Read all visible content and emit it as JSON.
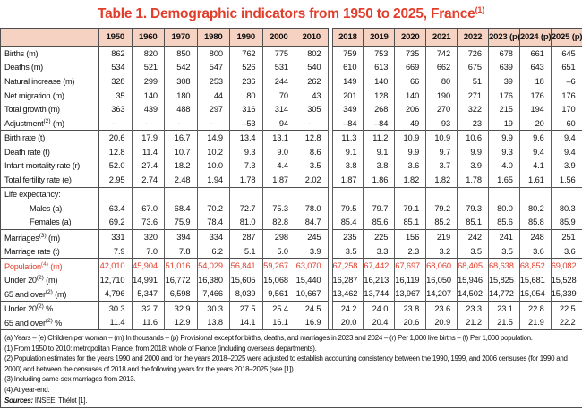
{
  "title": {
    "text": "Table 1. Demographic indicators from 1950 to 2025, France",
    "sup": "(1)"
  },
  "colors": {
    "accent_red": "#e23d2b",
    "header_pink": "#f6d2c3",
    "border_gray": "#4f4f4f"
  },
  "table": {
    "left_years": [
      "1950",
      "1960",
      "1970",
      "1980",
      "1990",
      "2000",
      "2010"
    ],
    "right_years": [
      "2018",
      "2019",
      "2020",
      "2021",
      "2022",
      "2023 (p)",
      "2024 (p)",
      "2025 (p)"
    ],
    "rows": [
      {
        "pre": "Births",
        "sup": "",
        "post": " (m)",
        "left": [
          "862",
          "820",
          "850",
          "800",
          "762",
          "775",
          "802"
        ],
        "right": [
          "759",
          "753",
          "735",
          "742",
          "726",
          "678",
          "661",
          "645"
        ]
      },
      {
        "pre": "Deaths",
        "sup": "",
        "post": " (m)",
        "left": [
          "534",
          "521",
          "542",
          "547",
          "526",
          "531",
          "540"
        ],
        "right": [
          "610",
          "613",
          "669",
          "662",
          "675",
          "639",
          "643",
          "651"
        ]
      },
      {
        "pre": "Natural increase",
        "sup": "",
        "post": " (m)",
        "left": [
          "328",
          "299",
          "308",
          "253",
          "236",
          "244",
          "262"
        ],
        "right": [
          "149",
          "140",
          "66",
          "80",
          "51",
          "39",
          "18",
          "–6"
        ]
      },
      {
        "pre": "Net migration",
        "sup": "",
        "post": " (m)",
        "left": [
          "35",
          "140",
          "180",
          "44",
          "80",
          "70",
          "43"
        ],
        "right": [
          "201",
          "128",
          "140",
          "190",
          "271",
          "176",
          "176",
          "176"
        ]
      },
      {
        "pre": "Total growth",
        "sup": "",
        "post": " (m)",
        "left": [
          "363",
          "439",
          "488",
          "297",
          "316",
          "314",
          "305"
        ],
        "right": [
          "349",
          "268",
          "206",
          "270",
          "322",
          "215",
          "194",
          "170"
        ]
      },
      {
        "pre": "Adjustment",
        "sup": "(2)",
        "post": " (m)",
        "left": [
          "-",
          "-",
          "-",
          "-",
          "–53",
          "94",
          "-"
        ],
        "right": [
          "–84",
          "–84",
          "49",
          "93",
          "23",
          "19",
          "20",
          "60"
        ]
      },
      {
        "pre": "Birth rate",
        "sup": "",
        "post": " (t)",
        "group_start": true,
        "left": [
          "20.6",
          "17.9",
          "16.7",
          "14.9",
          "13.4",
          "13.1",
          "12.8"
        ],
        "right": [
          "11.3",
          "11.2",
          "10.9",
          "10.9",
          "10.6",
          "9.9",
          "9.6",
          "9.4"
        ]
      },
      {
        "pre": "Death rate",
        "sup": "",
        "post": " (t)",
        "left": [
          "12.8",
          "11.4",
          "10.7",
          "10.2",
          "9.3",
          "9.0",
          "8.6"
        ],
        "right": [
          "9.1",
          "9.1",
          "9.9",
          "9.7",
          "9.9",
          "9.3",
          "9.4",
          "9.4"
        ]
      },
      {
        "pre": "Infant mortality rate",
        "sup": "",
        "post": " (r)",
        "left": [
          "52.0",
          "27.4",
          "18.2",
          "10.0",
          "7.3",
          "4.4",
          "3.5"
        ],
        "right": [
          "3.8",
          "3.8",
          "3.6",
          "3.7",
          "3.9",
          "4.0",
          "4.1",
          "3.9"
        ]
      },
      {
        "pre": "Total fertility rate",
        "sup": "",
        "post": " (e)",
        "left": [
          "2.95",
          "2.74",
          "2.48",
          "1.94",
          "1.78",
          "1.87",
          "2.02"
        ],
        "right": [
          "1.87",
          "1.86",
          "1.82",
          "1.82",
          "1.78",
          "1.65",
          "1.61",
          "1.56"
        ]
      },
      {
        "pre": "Life expectancy:",
        "sup": "",
        "post": "",
        "group_start": true,
        "left": [
          "",
          "",
          "",
          "",
          "",
          "",
          ""
        ],
        "right": [
          "",
          "",
          "",
          "",
          "",
          "",
          "",
          ""
        ]
      },
      {
        "pre": "Males (a)",
        "sup": "",
        "post": "",
        "indent": true,
        "left": [
          "63.4",
          "67.0",
          "68.4",
          "70.2",
          "72.7",
          "75.3",
          "78.0"
        ],
        "right": [
          "79.5",
          "79.7",
          "79.1",
          "79.2",
          "79.3",
          "80.0",
          "80.2",
          "80.3"
        ]
      },
      {
        "pre": "Females (a)",
        "sup": "",
        "post": "",
        "indent": true,
        "left": [
          "69.2",
          "73.6",
          "75.9",
          "78.4",
          "81.0",
          "82.8",
          "84.7"
        ],
        "right": [
          "85.4",
          "85.6",
          "85.1",
          "85.2",
          "85.1",
          "85.6",
          "85.8",
          "85.9"
        ]
      },
      {
        "pre": "Marriages",
        "sup": "(3)",
        "post": " (m)",
        "group_start": true,
        "left": [
          "331",
          "320",
          "394",
          "334",
          "287",
          "298",
          "245"
        ],
        "right": [
          "235",
          "225",
          "156",
          "219",
          "242",
          "241",
          "248",
          "251"
        ]
      },
      {
        "pre": "Marriage rate",
        "sup": "",
        "post": " (t)",
        "left": [
          "7.9",
          "7.0",
          "7.8",
          "6.2",
          "5.1",
          "5.0",
          "3.9"
        ],
        "right": [
          "3.5",
          "3.3",
          "2.3",
          "3.2",
          "3.5",
          "3.5",
          "3.6",
          "3.6"
        ]
      },
      {
        "pre": "Population",
        "sup": "(4)",
        "post": " (m)",
        "group_start": true,
        "red": true,
        "left": [
          "42,010",
          "45,904",
          "51,016",
          "54,029",
          "56,841",
          "59,267",
          "63,070"
        ],
        "right": [
          "67,258",
          "67,442",
          "67,697",
          "68,060",
          "68,405",
          "68,638",
          "68,852",
          "69,082"
        ]
      },
      {
        "pre": "Under 20",
        "sup": "(2)",
        "post": " (m)",
        "left": [
          "12,710",
          "14,991",
          "16,772",
          "16,380",
          "15,605",
          "15,068",
          "15,440"
        ],
        "right": [
          "16,287",
          "16,213",
          "16,119",
          "16,050",
          "15,946",
          "15,825",
          "15,681",
          "15,528"
        ]
      },
      {
        "pre": "65 and over",
        "sup": "(2)",
        "post": " (m)",
        "left": [
          "4,796",
          "5,347",
          "6,598",
          "7,466",
          "8,039",
          "9,561",
          "10,667"
        ],
        "right": [
          "13,462",
          "13,744",
          "13,967",
          "14,207",
          "14,502",
          "14,772",
          "15,054",
          "15,339"
        ]
      },
      {
        "pre": "Under 20",
        "sup": "(2)",
        "post": " %",
        "group_start": true,
        "left": [
          "30.3",
          "32.7",
          "32.9",
          "30.3",
          "27.5",
          "25.4",
          "24.5"
        ],
        "right": [
          "24.2",
          "24.0",
          "23.8",
          "23.6",
          "23.3",
          "23.1",
          "22.8",
          "22.5"
        ]
      },
      {
        "pre": "65 and over",
        "sup": "(2)",
        "post": " %",
        "left": [
          "11.4",
          "11.6",
          "12.9",
          "13.8",
          "14.1",
          "16.1",
          "16.9"
        ],
        "right": [
          "20.0",
          "20.4",
          "20.6",
          "20.9",
          "21.2",
          "21.5",
          "21.9",
          "22.2"
        ]
      }
    ]
  },
  "footnotes": [
    "(a) Years – (e) Children per woman – (m) In thousands – (p) Provisional except for births, deaths, and marriages in 2023 and 2024 – (r) Per 1,000 live births – (t) Per 1,000 population.",
    "(1) From 1950 to 2010: metropolitan France; from 2018: whole of France (including overseas departments).",
    "(2) Population estimates for the years 1990 and 2000 and for the years 2018–2025 were adjusted to establish accounting consistency between the 1990, 1999, and 2006 censuses (for 1990 and 2000) and between the censuses of 2018 and the following years for the years 2018–2025 (see [1]).",
    "(3) Including same-sex marriages from 2013.",
    "(4) At year-end."
  ],
  "sources": {
    "label": "Sources:",
    "text": " INSEE; Thélot [1]."
  }
}
